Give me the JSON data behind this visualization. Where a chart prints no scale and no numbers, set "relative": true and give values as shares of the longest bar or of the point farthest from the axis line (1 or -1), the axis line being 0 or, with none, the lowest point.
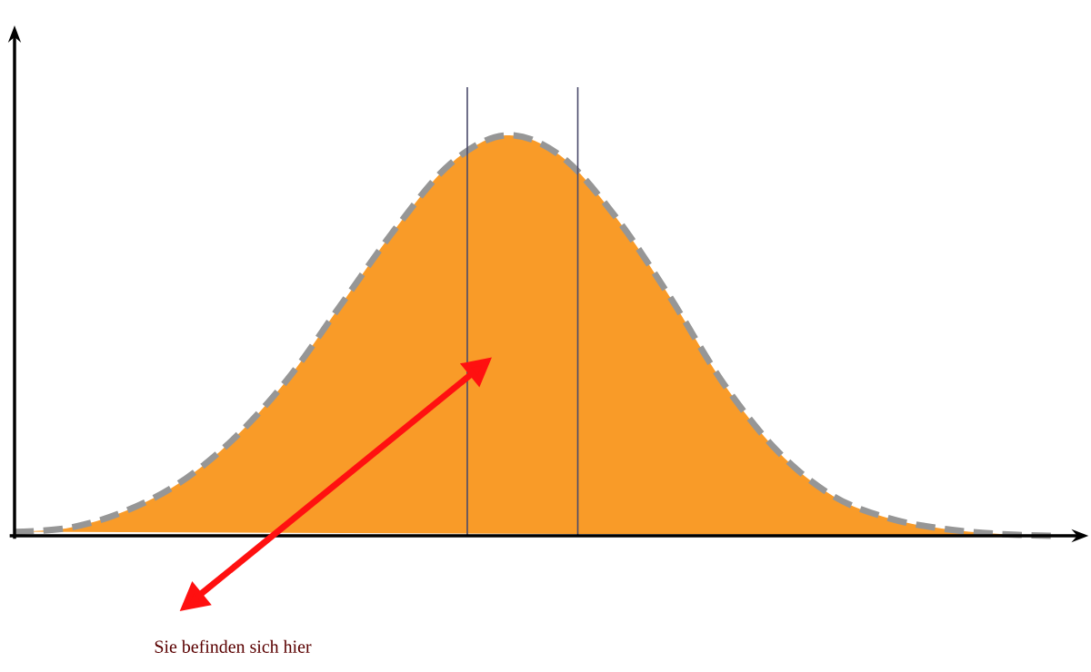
{
  "chart_data": {
    "type": "area",
    "relative": true,
    "line_style": "dashed",
    "categories": [
      null,
      null,
      null,
      null,
      null,
      null,
      null,
      null,
      null,
      null,
      null,
      null,
      null,
      null,
      null,
      null,
      null,
      null,
      null,
      null
    ],
    "series": [
      {
        "color": "#f99b28",
        "values": [
          0.01,
          0.02,
          0.06,
          0.13,
          0.24,
          0.39,
          0.58,
          0.77,
          0.93,
          1,
          0.95,
          0.8,
          0.6,
          0.38,
          0.21,
          0.1,
          0.045,
          0.018,
          0.005,
          0
        ]
      }
    ],
    "annotations": [
      "Sie befinden sich hier"
    ]
  }
}
